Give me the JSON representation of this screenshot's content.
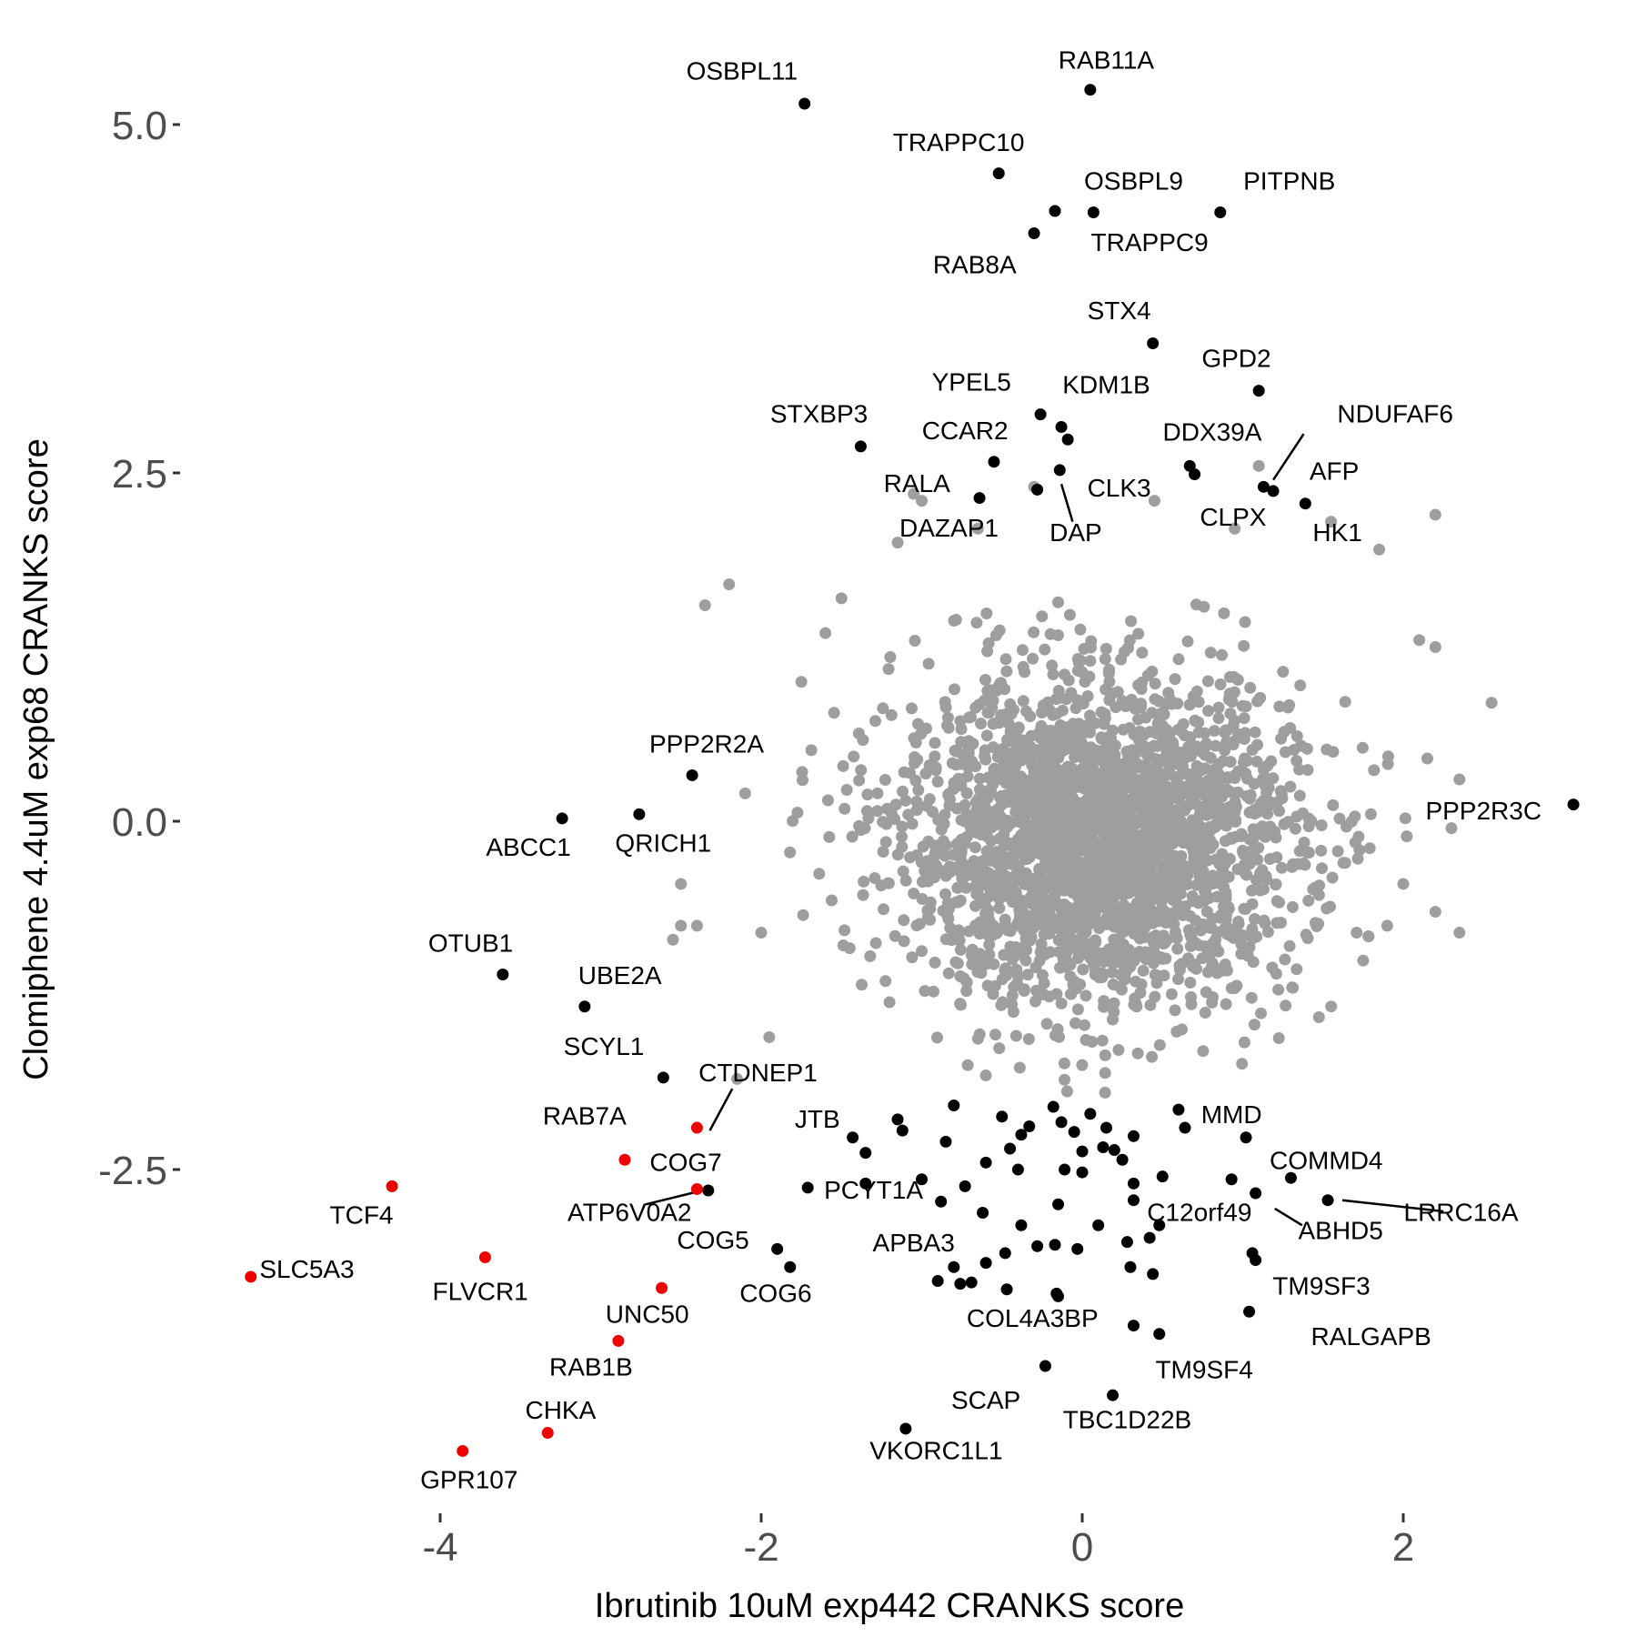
{
  "chart_data": {
    "type": "scatter",
    "xlabel": "Ibrutinib 10uM exp442 CRANKS score",
    "ylabel": "Clomiphene 4.4uM exp68 CRANKS score",
    "xlim": [
      -5.4,
      3.3
    ],
    "ylim": [
      -4.9,
      5.5
    ],
    "xticks": [
      -4,
      -2,
      0,
      2
    ],
    "xtick_labels": [
      "-4",
      "-2",
      "0",
      "2"
    ],
    "yticks": [
      5.0,
      2.5,
      0.0,
      -2.5
    ],
    "ytick_labels": [
      "5.0",
      "2.5",
      "0.0",
      "-2.5"
    ],
    "grid": false,
    "legend": "none",
    "colors": {
      "background": "#9e9e9e",
      "highlight": "#000000",
      "red": "#ee0000"
    },
    "background_cloud": {
      "description_note": "",
      "center": [
        0.1,
        -0.15
      ],
      "sd": [
        0.62,
        0.58
      ]
    },
    "background_extra": [
      [
        -2.2,
        1.7
      ],
      [
        -2.35,
        1.55
      ],
      [
        -1.5,
        1.6
      ],
      [
        -2.1,
        0.2
      ],
      [
        -2.0,
        -0.8
      ],
      [
        -2.4,
        -0.75
      ],
      [
        -2.5,
        -0.45
      ],
      [
        -2.5,
        -0.75
      ],
      [
        -1.95,
        -1.55
      ],
      [
        -2.15,
        -1.85
      ],
      [
        -1.75,
        1.0
      ],
      [
        2.55,
        0.85
      ],
      [
        2.35,
        0.3
      ],
      [
        2.35,
        -0.8
      ],
      [
        2.2,
        -0.65
      ],
      [
        2.2,
        2.2
      ],
      [
        1.55,
        2.15
      ],
      [
        1.1,
        2.55
      ],
      [
        -0.65,
        2.1
      ],
      [
        -1.0,
        2.3
      ],
      [
        -1.15,
        2.0
      ],
      [
        2.1,
        1.3
      ],
      [
        2.2,
        1.25
      ],
      [
        1.85,
        1.95
      ],
      [
        -1.05,
        2.35
      ],
      [
        -0.3,
        2.4
      ],
      [
        0.45,
        2.3
      ],
      [
        0.95,
        2.1
      ],
      [
        -2.55,
        -0.85
      ],
      [
        2.0,
        -0.45
      ],
      [
        1.9,
        -0.75
      ],
      [
        2.3,
        -0.05
      ],
      [
        2.15,
        0.45
      ],
      [
        1.75,
        -1.0
      ],
      [
        -1.6,
        1.35
      ]
    ],
    "highlighted_points": [
      {
        "label": "OSBPL11",
        "x": -1.73,
        "y": 5.15
      },
      {
        "label": "RAB11A",
        "x": 0.05,
        "y": 5.25
      },
      {
        "label": "TRAPPC10",
        "x": -0.52,
        "y": 4.65
      },
      {
        "label": "OSBPL9",
        "x": 0.07,
        "y": 4.37
      },
      {
        "label": "PITPNB",
        "x": 0.86,
        "y": 4.37
      },
      {
        "label": "TRAPPC9",
        "x": -0.17,
        "y": 4.38
      },
      {
        "label": "RAB8A",
        "x": -0.3,
        "y": 4.22
      },
      {
        "label": "STX4",
        "x": 0.44,
        "y": 3.43
      },
      {
        "label": "GPD2",
        "x": 1.1,
        "y": 3.09
      },
      {
        "label": "YPEL5",
        "x": -0.26,
        "y": 2.92
      },
      {
        "label": "KDM1B",
        "x": -0.13,
        "y": 2.83
      },
      {
        "label": "",
        "x": -0.09,
        "y": 2.74
      },
      {
        "label": "STXBP3",
        "x": -1.38,
        "y": 2.69
      },
      {
        "label": "CCAR2",
        "x": -0.55,
        "y": 2.58
      },
      {
        "label": "DDX39A",
        "x": 0.67,
        "y": 2.55
      },
      {
        "label": "",
        "x": 0.7,
        "y": 2.49
      },
      {
        "label": "",
        "x": -0.14,
        "y": 2.52
      },
      {
        "label": "",
        "x": 1.13,
        "y": 2.4
      },
      {
        "label": "NDUFAF6",
        "x": 1.19,
        "y": 2.37
      },
      {
        "label": "AFP",
        "x": 1.39,
        "y": 2.28
      },
      {
        "label": "RALA",
        "x": -0.64,
        "y": 2.32
      },
      {
        "label": "",
        "x": -0.28,
        "y": 2.38
      },
      {
        "label": "PPP2R2A",
        "x": -2.43,
        "y": 0.33
      },
      {
        "label": "ABCC1",
        "x": -3.24,
        "y": 0.02
      },
      {
        "label": "QRICH1",
        "x": -2.76,
        "y": 0.05
      },
      {
        "label": "PPP2R3C",
        "x": 3.06,
        "y": 0.12
      },
      {
        "label": "OTUB1",
        "x": -3.61,
        "y": -1.1
      },
      {
        "label": "UBE2A",
        "x": -3.1,
        "y": -1.33
      },
      {
        "label": "SCYL1",
        "x": -2.61,
        "y": -1.84
      },
      {
        "label": "JTB",
        "x": -1.43,
        "y": -2.27
      },
      {
        "label": "",
        "x": -1.35,
        "y": -2.38
      },
      {
        "label": "",
        "x": -1.12,
        "y": -2.22
      },
      {
        "label": "",
        "x": -1.15,
        "y": -2.14
      },
      {
        "label": "",
        "x": -0.85,
        "y": -2.3
      },
      {
        "label": "",
        "x": -0.8,
        "y": -2.04
      },
      {
        "label": "",
        "x": -0.5,
        "y": -2.12
      },
      {
        "label": "",
        "x": -0.38,
        "y": -2.25
      },
      {
        "label": "",
        "x": -0.45,
        "y": -2.35
      },
      {
        "label": "",
        "x": -0.33,
        "y": -2.19
      },
      {
        "label": "",
        "x": -0.18,
        "y": -2.05
      },
      {
        "label": "",
        "x": -0.13,
        "y": -2.16
      },
      {
        "label": "",
        "x": -0.05,
        "y": -2.23
      },
      {
        "label": "",
        "x": 0.05,
        "y": -2.1
      },
      {
        "label": "",
        "x": 0.15,
        "y": -2.2
      },
      {
        "label": "",
        "x": 0.32,
        "y": -2.26
      },
      {
        "label": "",
        "x": 0.6,
        "y": -2.07
      },
      {
        "label": "MMD",
        "x": 0.64,
        "y": -2.2
      },
      {
        "label": "",
        "x": 1.02,
        "y": -2.27
      },
      {
        "label": "",
        "x": 0.0,
        "y": -2.37
      },
      {
        "label": "",
        "x": 0.13,
        "y": -2.34
      },
      {
        "label": "",
        "x": 0.2,
        "y": -2.36
      },
      {
        "label": "",
        "x": 0.25,
        "y": -2.43
      },
      {
        "label": "",
        "x": -0.11,
        "y": -2.5
      },
      {
        "label": "",
        "x": 0.0,
        "y": -2.52
      },
      {
        "label": "",
        "x": 0.5,
        "y": -2.55
      },
      {
        "label": "",
        "x": 0.32,
        "y": -2.6
      },
      {
        "label": "",
        "x": -0.6,
        "y": -2.45
      },
      {
        "label": "",
        "x": -0.4,
        "y": -2.5
      },
      {
        "label": "",
        "x": -0.73,
        "y": -2.62
      },
      {
        "label": "",
        "x": -1.0,
        "y": -2.57
      },
      {
        "label": "",
        "x": -1.35,
        "y": -2.6
      },
      {
        "label": "",
        "x": -0.88,
        "y": -2.73
      },
      {
        "label": "",
        "x": -0.62,
        "y": -2.81
      },
      {
        "label": "",
        "x": -0.38,
        "y": -2.9
      },
      {
        "label": "",
        "x": -0.15,
        "y": -2.75
      },
      {
        "label": "",
        "x": 0.1,
        "y": -2.9
      },
      {
        "label": "",
        "x": 0.32,
        "y": -2.72
      },
      {
        "label": "",
        "x": 0.48,
        "y": -2.9
      },
      {
        "label": "",
        "x": 0.42,
        "y": -2.99
      },
      {
        "label": "",
        "x": -0.28,
        "y": -3.05
      },
      {
        "label": "",
        "x": -0.48,
        "y": -3.1
      },
      {
        "label": "",
        "x": 0.28,
        "y": -3.02
      },
      {
        "label": "",
        "x": -0.17,
        "y": -3.04
      },
      {
        "label": "",
        "x": -0.03,
        "y": -3.07
      },
      {
        "label": "",
        "x": -0.6,
        "y": -3.17
      },
      {
        "label": "",
        "x": -0.8,
        "y": -3.2
      },
      {
        "label": "",
        "x": -0.76,
        "y": -3.32
      },
      {
        "label": "",
        "x": -0.69,
        "y": -3.31
      },
      {
        "label": "",
        "x": -0.47,
        "y": -3.36
      },
      {
        "label": "",
        "x": -0.16,
        "y": -3.39
      },
      {
        "label": "",
        "x": -0.15,
        "y": -3.41
      },
      {
        "label": "",
        "x": 0.3,
        "y": -3.2
      },
      {
        "label": "",
        "x": 0.44,
        "y": -3.25
      },
      {
        "label": "",
        "x": 0.32,
        "y": -3.62
      },
      {
        "label": "",
        "x": 0.48,
        "y": -3.68
      },
      {
        "label": "COMMD4",
        "x": 0.93,
        "y": -2.57
      },
      {
        "label": "",
        "x": 1.08,
        "y": -2.67
      },
      {
        "label": "",
        "x": 1.3,
        "y": -2.56
      },
      {
        "label": "LRRC16A",
        "x": 1.53,
        "y": -2.72
      },
      {
        "label": "",
        "x": 1.06,
        "y": -3.1
      },
      {
        "label": "TM9SF3",
        "x": 1.08,
        "y": -3.15
      },
      {
        "label": "",
        "x": 1.04,
        "y": -3.52
      },
      {
        "label": "PCYT1A",
        "x": -1.71,
        "y": -2.63
      },
      {
        "label": "",
        "x": -2.33,
        "y": -2.65
      },
      {
        "label": "COG5",
        "x": -1.9,
        "y": -3.07
      },
      {
        "label": "COG6",
        "x": -1.82,
        "y": -3.2
      },
      {
        "label": "",
        "x": -0.9,
        "y": -3.3
      },
      {
        "label": "",
        "x": -0.23,
        "y": -3.91
      },
      {
        "label": "TBC1D22B",
        "x": 0.19,
        "y": -4.12
      },
      {
        "label": "",
        "x": -1.1,
        "y": -4.36
      }
    ],
    "red_points": [
      {
        "label": "CTDNEP1",
        "x": -2.4,
        "y": -2.2
      },
      {
        "label": "RAB7A",
        "x": -2.85,
        "y": -2.43
      },
      {
        "label": "COG7",
        "x": -2.4,
        "y": -2.64
      },
      {
        "label": "TCF4",
        "x": -4.3,
        "y": -2.62
      },
      {
        "label": "SLC5A3",
        "x": -5.18,
        "y": -3.27
      },
      {
        "label": "FLVCR1",
        "x": -3.72,
        "y": -3.13
      },
      {
        "label": "UNC50",
        "x": -2.62,
        "y": -3.35
      },
      {
        "label": "RAB1B",
        "x": -2.89,
        "y": -3.73
      },
      {
        "label": "CHKA",
        "x": -3.33,
        "y": -4.39
      },
      {
        "label": "GPR107",
        "x": -3.86,
        "y": -4.52
      }
    ],
    "text_labels": [
      {
        "text": "OSBPL11",
        "x": -2.12,
        "y": 5.37
      },
      {
        "text": "RAB11A",
        "x": 0.15,
        "y": 5.45
      },
      {
        "text": "TRAPPC10",
        "x": -0.77,
        "y": 4.86
      },
      {
        "text": "OSBPL9",
        "x": 0.32,
        "y": 4.58
      },
      {
        "text": "PITPNB",
        "x": 1.29,
        "y": 4.58
      },
      {
        "text": "TRAPPC9",
        "x": 0.42,
        "y": 4.14
      },
      {
        "text": "RAB8A",
        "x": -0.67,
        "y": 3.98
      },
      {
        "text": "STX4",
        "x": 0.23,
        "y": 3.65
      },
      {
        "text": "GPD2",
        "x": 0.96,
        "y": 3.31
      },
      {
        "text": "YPEL5",
        "x": -0.69,
        "y": 3.14
      },
      {
        "text": "KDM1B",
        "x": 0.15,
        "y": 3.12
      },
      {
        "text": "STXBP3",
        "x": -1.64,
        "y": 2.91
      },
      {
        "text": "NDUFAF6",
        "x": 1.95,
        "y": 2.91
      },
      {
        "text": "CCAR2",
        "x": -0.73,
        "y": 2.79
      },
      {
        "text": "DDX39A",
        "x": 0.81,
        "y": 2.78
      },
      {
        "text": "AFP",
        "x": 1.57,
        "y": 2.5
      },
      {
        "text": "RALA",
        "x": -1.03,
        "y": 2.41
      },
      {
        "text": "CLK3",
        "x": 0.23,
        "y": 2.38
      },
      {
        "text": "CLPX",
        "x": 0.94,
        "y": 2.17
      },
      {
        "text": "HK1",
        "x": 1.59,
        "y": 2.06
      },
      {
        "text": "DAZAP1",
        "x": -0.83,
        "y": 2.09
      },
      {
        "text": "DAP",
        "x": -0.04,
        "y": 2.06
      },
      {
        "text": "PPP2R2A",
        "x": -2.34,
        "y": 0.54
      },
      {
        "text": "ABCC1",
        "x": -3.45,
        "y": -0.2
      },
      {
        "text": "QRICH1",
        "x": -2.61,
        "y": -0.17
      },
      {
        "text": "PPP2R3C",
        "x": 2.5,
        "y": 0.06
      },
      {
        "text": "OTUB1",
        "x": -3.81,
        "y": -0.89
      },
      {
        "text": "UBE2A",
        "x": -2.88,
        "y": -1.12
      },
      {
        "text": "SCYL1",
        "x": -2.98,
        "y": -1.63
      },
      {
        "text": "CTDNEP1",
        "x": -2.02,
        "y": -1.82
      },
      {
        "text": "RAB7A",
        "x": -3.1,
        "y": -2.13
      },
      {
        "text": "JTB",
        "x": -1.65,
        "y": -2.15
      },
      {
        "text": "MMD",
        "x": 0.93,
        "y": -2.12
      },
      {
        "text": "COG7",
        "x": -2.47,
        "y": -2.46
      },
      {
        "text": "COMMD4",
        "x": 1.52,
        "y": -2.45
      },
      {
        "text": "PCYT1A",
        "x": -1.3,
        "y": -2.66
      },
      {
        "text": "ATP6V0A2",
        "x": -2.82,
        "y": -2.82
      },
      {
        "text": "C12orf49",
        "x": 0.73,
        "y": -2.82
      },
      {
        "text": "LRRC16A",
        "x": 2.36,
        "y": -2.82
      },
      {
        "text": "TCF4",
        "x": -4.49,
        "y": -2.84
      },
      {
        "text": "ABHD5",
        "x": 1.61,
        "y": -2.95
      },
      {
        "text": "APBA3",
        "x": -1.05,
        "y": -3.04
      },
      {
        "text": "COG5",
        "x": -2.3,
        "y": -3.02
      },
      {
        "text": "SLC5A3",
        "x": -4.83,
        "y": -3.23
      },
      {
        "text": "TM9SF3",
        "x": 1.49,
        "y": -3.35
      },
      {
        "text": "FLVCR1",
        "x": -3.75,
        "y": -3.39
      },
      {
        "text": "COG6",
        "x": -1.91,
        "y": -3.4
      },
      {
        "text": "UNC50",
        "x": -2.71,
        "y": -3.55
      },
      {
        "text": "COL4A3BP",
        "x": -0.31,
        "y": -3.58
      },
      {
        "text": "RALGAPB",
        "x": 1.8,
        "y": -3.71
      },
      {
        "text": "RAB1B",
        "x": -3.06,
        "y": -3.93
      },
      {
        "text": "TM9SF4",
        "x": 0.76,
        "y": -3.95
      },
      {
        "text": "SCAP",
        "x": -0.6,
        "y": -4.17
      },
      {
        "text": "CHKA",
        "x": -3.25,
        "y": -4.24
      },
      {
        "text": "TBC1D22B",
        "x": 0.28,
        "y": -4.31
      },
      {
        "text": "VKORC1L1",
        "x": -0.91,
        "y": -4.53
      },
      {
        "text": "GPR107",
        "x": -3.82,
        "y": -4.74
      }
    ],
    "leader_lines": [
      [
        1.38,
        2.78,
        1.19,
        2.45
      ],
      [
        -0.13,
        2.42,
        -0.06,
        2.15
      ],
      [
        -2.18,
        -1.92,
        -2.32,
        -2.22
      ],
      [
        -2.72,
        -2.75,
        -2.4,
        -2.66
      ],
      [
        1.62,
        -2.72,
        2.25,
        -2.8
      ],
      [
        1.37,
        -2.9,
        1.2,
        -2.78
      ]
    ]
  }
}
